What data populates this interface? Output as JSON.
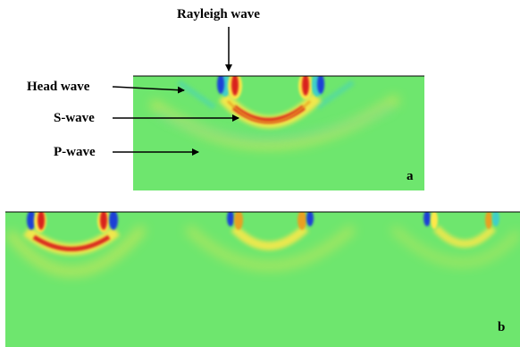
{
  "colors": {
    "background": "#6ee66e",
    "crest": "#d9231e",
    "trough": "#1d3fd6",
    "positive_halo": "#ffe84a",
    "negative_halo": "#3fd0c8",
    "border": "#000000",
    "arrow": "#000000"
  },
  "annotations": {
    "rayleigh": "Rayleigh wave",
    "head": "Head wave",
    "s_wave": "S-wave",
    "p_wave": "P-wave"
  },
  "panels": {
    "a": {
      "label": "a"
    },
    "b": {
      "label": "b"
    }
  }
}
